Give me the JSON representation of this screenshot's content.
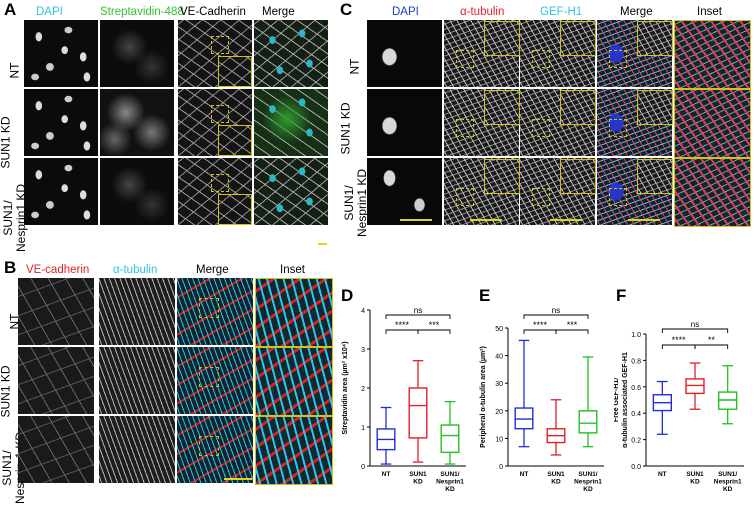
{
  "panels": {
    "A": {
      "letter": "A",
      "columns": [
        "DAPI",
        "Streptavidin-488",
        "VE-Cadherin",
        "Merge"
      ],
      "column_colors": [
        "#2ec4e6",
        "#35c035",
        "#000000",
        "#000000"
      ],
      "rows": [
        "NT",
        "SUN1 KD",
        "SUN1/\nNesprin1 KD"
      ]
    },
    "B": {
      "letter": "B",
      "columns": [
        "VE-cadherin",
        "α-tubulin",
        "Merge",
        "Inset"
      ],
      "column_colors": [
        "#e0202a",
        "#2ec4e6",
        "#000000",
        "#000000"
      ],
      "rows": [
        "NT",
        "SUN1 KD",
        "SUN1/\nNesprin-1 KD"
      ]
    },
    "C": {
      "letter": "C",
      "columns": [
        "DAPI",
        "α-tubulin",
        "GEF-H1",
        "Merge",
        "Inset"
      ],
      "column_colors": [
        "#1f3fbf",
        "#e0202a",
        "#2ec4e6",
        "#000000",
        "#000000"
      ],
      "rows": [
        "NT",
        "SUN1 KD",
        "SUN1/\nNesprin1 KD"
      ]
    },
    "D": {
      "letter": "D"
    },
    "E": {
      "letter": "E"
    },
    "F": {
      "letter": "F"
    }
  },
  "colors": {
    "scale_bar": "#e3d21c",
    "nt": "#1f2fd8",
    "sun1": "#e0202a",
    "sun1_nesprin": "#22c022"
  },
  "chart_data": [
    {
      "type": "box",
      "panel": "D",
      "ylabel": "Streptavidin area (µm² x10⁴)",
      "ylim": [
        0,
        4
      ],
      "yticks": [
        0,
        1,
        2,
        3,
        4
      ],
      "categories": [
        "NT",
        "SUN1\nKD",
        "SUN1/\nNesprin1\nKD"
      ],
      "boxes": [
        {
          "min": 0.05,
          "q1": 0.42,
          "median": 0.68,
          "q3": 0.95,
          "max": 1.5
        },
        {
          "min": 0.1,
          "q1": 0.72,
          "median": 1.55,
          "q3": 2.0,
          "max": 2.7
        },
        {
          "min": 0.05,
          "q1": 0.35,
          "median": 0.78,
          "q3": 1.05,
          "max": 1.65
        }
      ],
      "significance": [
        {
          "from": 0,
          "to": 2,
          "label": "ns"
        },
        {
          "from": 0,
          "to": 1,
          "label": "****"
        },
        {
          "from": 1,
          "to": 2,
          "label": "***"
        }
      ]
    },
    {
      "type": "box",
      "panel": "E",
      "ylabel": "Peripheral α-tubulin area (µm²)",
      "ylim": [
        0,
        50
      ],
      "yticks": [
        0,
        10,
        20,
        30,
        40,
        50
      ],
      "categories": [
        "NT",
        "SUN1\nKD",
        "SUN1/\nNesprin1\nKD"
      ],
      "boxes": [
        {
          "min": 7,
          "q1": 13.5,
          "median": 17,
          "q3": 21,
          "max": 45.5
        },
        {
          "min": 4,
          "q1": 8.5,
          "median": 11,
          "q3": 13.5,
          "max": 24
        },
        {
          "min": 7,
          "q1": 12,
          "median": 15.5,
          "q3": 20,
          "max": 39.5
        }
      ],
      "significance": [
        {
          "from": 0,
          "to": 2,
          "label": "ns"
        },
        {
          "from": 0,
          "to": 1,
          "label": "****"
        },
        {
          "from": 1,
          "to": 2,
          "label": "***"
        }
      ]
    },
    {
      "type": "box",
      "panel": "F",
      "ylabel": "Free GEF-H1/ α-tubulin associated GEF-H1",
      "ylim": [
        0,
        1.0
      ],
      "yticks": [
        0.0,
        0.2,
        0.4,
        0.6,
        0.8,
        1.0
      ],
      "categories": [
        "NT",
        "SUN1\nKD",
        "SUN1/\nNesprin1\nKD"
      ],
      "boxes": [
        {
          "min": 0.24,
          "q1": 0.42,
          "median": 0.48,
          "q3": 0.54,
          "max": 0.64
        },
        {
          "min": 0.43,
          "q1": 0.55,
          "median": 0.61,
          "q3": 0.66,
          "max": 0.78
        },
        {
          "min": 0.32,
          "q1": 0.43,
          "median": 0.5,
          "q3": 0.56,
          "max": 0.76
        }
      ],
      "significance": [
        {
          "from": 0,
          "to": 2,
          "label": "ns"
        },
        {
          "from": 0,
          "to": 1,
          "label": "****"
        },
        {
          "from": 1,
          "to": 2,
          "label": "**"
        }
      ]
    }
  ]
}
